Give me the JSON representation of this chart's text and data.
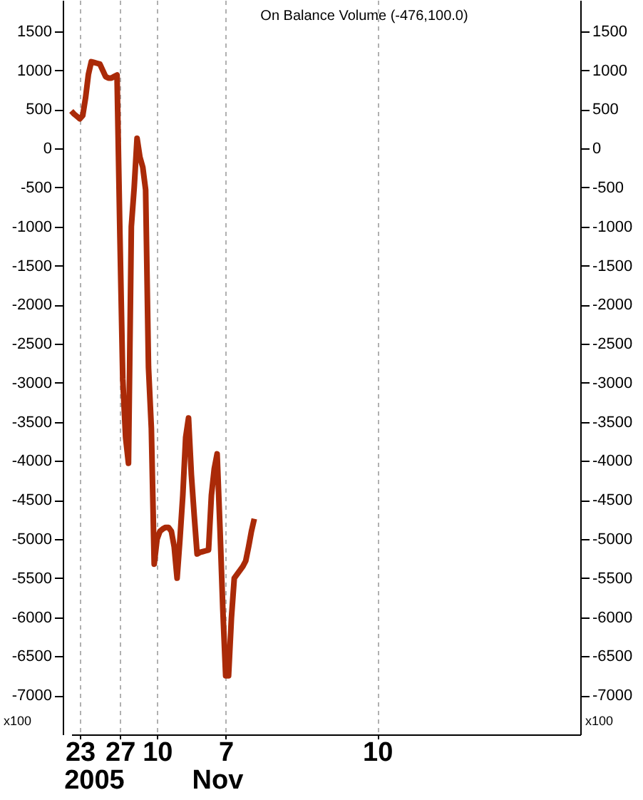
{
  "chart_data": {
    "type": "line",
    "title": "On Balance Volume (-476,100.0)",
    "ylabel": "x100",
    "y2label": "x100",
    "annotations": [
      "2005",
      "Nov"
    ],
    "categories": [
      null,
      null,
      null,
      "23",
      null,
      null,
      null,
      null,
      null,
      null,
      null,
      null,
      null,
      null,
      null,
      null,
      null,
      "27",
      null,
      null,
      null,
      null,
      null,
      null,
      null,
      null,
      null,
      null,
      null,
      null,
      "10",
      null,
      null,
      null,
      null,
      null,
      null,
      null,
      null,
      null,
      null,
      null,
      null,
      null,
      null,
      null,
      null,
      null,
      null,
      null,
      null,
      null,
      null,
      null,
      "7",
      null,
      null,
      null,
      null,
      null,
      null,
      null,
      null,
      null,
      null,
      null,
      null,
      null,
      null,
      null,
      null,
      null,
      null,
      null,
      null,
      null,
      null,
      null,
      null,
      null,
      null,
      null,
      null,
      null,
      null,
      null,
      null,
      null,
      null,
      null,
      null,
      null,
      null,
      null,
      null,
      null,
      null,
      null,
      null,
      null,
      null,
      null,
      null,
      null,
      null,
      null,
      null,
      "10",
      null,
      null,
      null,
      null,
      null,
      null,
      null,
      null,
      null,
      null,
      null,
      null,
      null,
      null,
      null,
      null,
      null,
      null,
      null,
      null,
      null,
      null,
      null,
      null,
      null,
      null,
      null,
      null,
      null,
      null,
      null,
      null,
      null,
      null,
      null,
      null,
      null,
      null,
      null,
      null,
      null,
      null,
      null,
      null,
      null,
      null,
      null,
      null,
      null,
      null,
      null,
      null,
      null,
      null,
      null,
      null,
      null,
      null,
      null,
      null,
      null,
      null,
      null,
      null,
      null,
      null,
      null,
      null,
      null,
      null,
      null
    ],
    "series": [
      {
        "color": "#aa2a08",
        "values": [
          480,
          440,
          410,
          380,
          420,
          650,
          950,
          1110,
          1100,
          1090,
          1080,
          1000,
          920,
          900,
          900,
          920,
          940,
          -1100,
          -2950,
          -3700,
          -4030,
          -1000,
          -500,
          130,
          -110,
          -240,
          -530,
          -2800,
          -3580,
          -5320,
          -5000,
          -4900,
          -4870,
          -4850,
          -4850,
          -4900,
          -5100,
          -5500,
          -5000,
          -4440,
          -3700,
          -3450,
          -4180,
          -4700,
          -5190,
          -5170,
          -5160,
          -5150,
          -5140,
          -4440,
          -4100,
          -3910,
          -4860,
          -5900,
          -6750,
          -6750,
          -6010,
          -5500,
          -5450,
          -5400,
          -5350,
          -5280,
          -5100,
          -4900,
          -4740,
          null,
          null,
          null,
          null,
          null,
          null,
          null,
          null,
          null,
          null,
          null,
          null,
          null,
          null,
          null,
          null,
          null,
          null,
          null,
          null,
          null,
          null,
          null,
          null,
          null,
          null,
          null,
          null,
          null,
          null,
          null,
          null,
          null,
          null,
          null,
          null,
          null,
          null,
          null,
          null,
          null,
          null,
          null,
          null,
          null,
          null,
          null,
          null,
          null,
          null,
          null,
          null,
          null,
          null,
          null,
          null,
          null,
          null,
          null,
          null,
          null,
          null,
          null,
          null,
          null,
          null,
          null,
          null,
          null,
          null,
          null,
          null,
          null,
          null,
          null,
          null,
          null,
          null,
          null,
          null,
          null,
          null,
          null,
          null,
          null,
          null,
          null,
          null,
          null,
          null,
          null,
          null,
          null,
          null,
          null,
          null,
          null,
          null,
          null,
          null,
          null,
          null,
          null,
          null,
          null,
          null,
          null,
          null,
          null,
          null,
          null,
          null,
          null,
          null
        ]
      }
    ],
    "ylim": [
      -7500,
      1900
    ],
    "yticks": [
      -7000,
      -6500,
      -6000,
      -5500,
      -5000,
      -4500,
      -4000,
      -3500,
      -3000,
      -2500,
      -2000,
      -1500,
      -1000,
      -500,
      0,
      500,
      1000,
      1500
    ],
    "y2lim": [
      -7500,
      1900
    ],
    "y2ticks": [
      -7000,
      -6500,
      -6000,
      -5500,
      -5000,
      -4500,
      -4000,
      -3500,
      -3000,
      -2500,
      -2000,
      -1500,
      -1000,
      -500,
      0,
      500,
      1000,
      1500
    ],
    "grid": "x",
    "line_style": "solid"
  }
}
